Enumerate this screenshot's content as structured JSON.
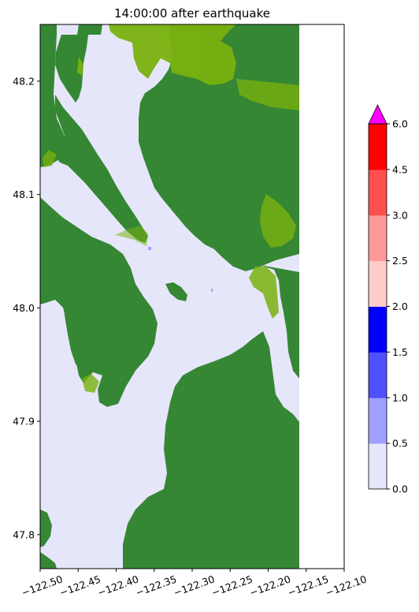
{
  "chart_data": {
    "type": "heatmap",
    "title": "14:00:00 after earthquake",
    "xlabel": "",
    "ylabel": "",
    "xlim": [
      -122.5,
      -122.1
    ],
    "ylim": [
      47.77,
      48.25
    ],
    "x_ticks": [
      "−122.50",
      "−122.45",
      "−122.40",
      "−122.35",
      "−122.30",
      "−122.25",
      "−122.20",
      "−122.15",
      "−122.10"
    ],
    "y_ticks": [
      "47.8",
      "47.9",
      "48.0",
      "48.1",
      "48.2"
    ],
    "data_extent_x": [
      -122.5,
      -122.16
    ],
    "colorbar": {
      "levels": [
        0.0,
        0.5,
        1.0,
        1.5,
        2.0,
        2.5,
        3.0,
        4.5,
        6.0
      ],
      "tick_labels": [
        "0.0",
        "0.5",
        "1.0",
        "1.5",
        "2.0",
        "2.5",
        "3.0",
        "4.5",
        "6.0"
      ],
      "colors": [
        "#e6e6fa",
        "#a0a0ff",
        "#5050ff",
        "#0000ff",
        "#ffcccc",
        "#ff9999",
        "#ff5050",
        "#ff0000"
      ],
      "extend_max_color": "#ff00ff",
      "extend": "max"
    },
    "land_colors": {
      "land": "#368734",
      "shore_vegetation": "#79b10f"
    },
    "water_max_level": "0.0–0.5"
  }
}
